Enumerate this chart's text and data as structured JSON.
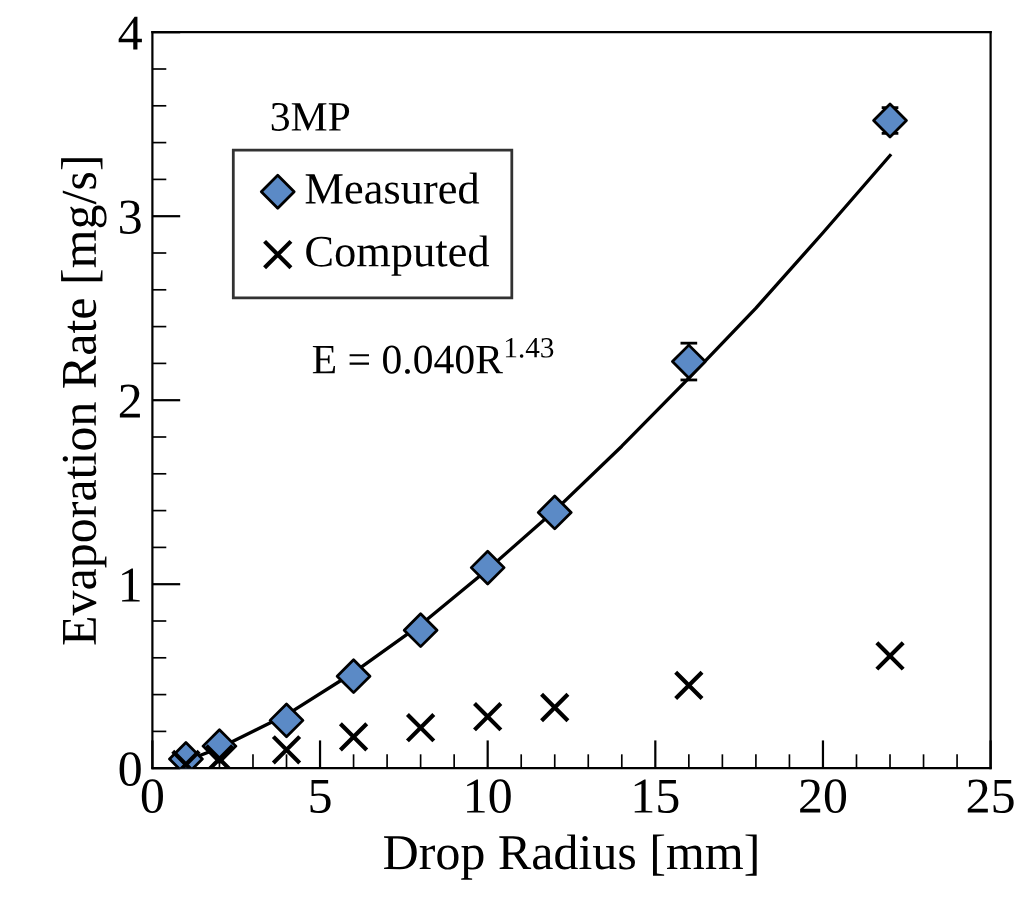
{
  "chart_data": {
    "type": "scatter",
    "xlabel": "Drop Radius [mm]",
    "ylabel": "Evaporation Rate [mg/s]",
    "xlim": [
      0,
      25
    ],
    "xticks": [
      0,
      5,
      10,
      15,
      20,
      25
    ],
    "ylim": [
      0,
      4
    ],
    "yticks": [
      0,
      1,
      2,
      3,
      4
    ],
    "x": [
      1,
      2,
      4,
      6,
      8,
      10,
      12,
      16,
      22
    ],
    "series": [
      {
        "name": "Measured",
        "color": "#5b8ac6",
        "marker": "diamond",
        "values": [
          0.05,
          0.12,
          0.26,
          0.5,
          0.75,
          1.09,
          1.39,
          2.21,
          3.52
        ],
        "errors": [
          null,
          null,
          null,
          null,
          null,
          null,
          null,
          0.1,
          0.07
        ]
      },
      {
        "name": "Computed",
        "color": "#000000",
        "marker": "cross",
        "values": [
          0.02,
          0.05,
          0.1,
          0.17,
          0.22,
          0.28,
          0.33,
          0.45,
          0.61
        ]
      },
      {
        "type": "line",
        "color": "#000000",
        "x": [
          1,
          2,
          4,
          6,
          8,
          10,
          12,
          14,
          16,
          18,
          20,
          22
        ],
        "values": [
          0.04,
          0.11,
          0.29,
          0.52,
          0.78,
          1.08,
          1.4,
          1.75,
          2.12,
          2.5,
          2.91,
          3.33
        ]
      }
    ],
    "annotations": [
      "3MP",
      "E = 0.040R$^{1.43}$"
    ],
    "legend": "top left",
    "grid": false
  }
}
